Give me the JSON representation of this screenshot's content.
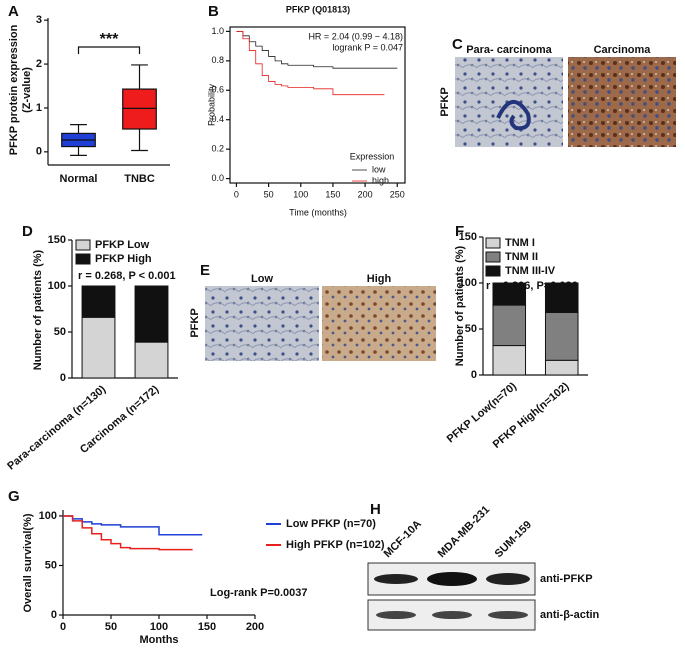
{
  "chart_data": [
    {
      "type": "box",
      "panel": "A",
      "y_label": [
        "PFKP protein expression",
        "(Z-value)"
      ],
      "categories": [
        "Normal",
        "TNBC"
      ],
      "stats": [
        {
          "min": -0.08,
          "q1": 0.12,
          "median": 0.27,
          "q3": 0.42,
          "max": 0.62
        },
        {
          "min": 0.03,
          "q1": 0.52,
          "median": 0.99,
          "q3": 1.43,
          "max": 1.98
        }
      ],
      "colors": [
        "#1f3fd6",
        "#ee1c1c"
      ],
      "ylim": [
        -0.3,
        3.05
      ],
      "yticks": [
        0,
        1,
        2,
        3
      ],
      "annotations": [
        "***"
      ]
    },
    {
      "type": "step",
      "panel": "B",
      "title": "PFKP (Q01813)",
      "x_label": "Time (months)",
      "y_label": "Probability",
      "annotations": [
        "HR = 2.04 (0.99 − 4.18)",
        "logrank P = 0.047"
      ],
      "legend_title": "Expression",
      "xlim": [
        -10,
        262
      ],
      "xticks": [
        0,
        50,
        100,
        150,
        200,
        250
      ],
      "ylim": [
        -0.03,
        1.03
      ],
      "yticks": [
        {
          "value": 0,
          "label": "0.0"
        },
        {
          "value": 0.2,
          "label": "0.2"
        },
        {
          "value": 0.4,
          "label": "0.4"
        },
        {
          "value": 0.6,
          "label": "0.6"
        },
        {
          "value": 0.8,
          "label": "0.8"
        },
        {
          "value": 1,
          "label": "1.0"
        }
      ],
      "series": [
        {
          "name": "low",
          "color": "#222222",
          "x": [
            0,
            10,
            20,
            30,
            40,
            50,
            60,
            70,
            80,
            100,
            120,
            150,
            250
          ],
          "values": [
            1,
            0.97,
            0.93,
            0.9,
            0.87,
            0.83,
            0.8,
            0.78,
            0.77,
            0.77,
            0.76,
            0.75,
            0.75
          ]
        },
        {
          "name": "high",
          "color": "#e8201c",
          "x": [
            0,
            10,
            20,
            30,
            40,
            50,
            60,
            70,
            80,
            100,
            120,
            150,
            230
          ],
          "values": [
            1,
            0.95,
            0.87,
            0.78,
            0.7,
            0.66,
            0.64,
            0.63,
            0.62,
            0.62,
            0.61,
            0.57,
            0.57
          ]
        }
      ]
    },
    {
      "type": "stacked_bar",
      "panel": "D",
      "y_label": "Number of patients (%)",
      "annotations": [
        "r = 0.268,  P < 0.001"
      ],
      "categories": [
        "Para-carcinoma (n=130)",
        "Carcinoma (n=172)"
      ],
      "ylim": [
        0,
        150
      ],
      "yticks": [
        0,
        50,
        100,
        150
      ],
      "series": [
        {
          "name": "PFKP Low",
          "color": "#d4d4d4",
          "values": [
            66,
            39
          ]
        },
        {
          "name": "PFKP High",
          "color": "#111111",
          "values": [
            34,
            61
          ]
        }
      ]
    },
    {
      "type": "stacked_bar",
      "panel": "F",
      "y_label": "Number of patients (%)",
      "annotations": [
        "r = 0.206, P=0.026"
      ],
      "categories": [
        "PFKP Low(n=70)",
        "PFKP High(n=102)"
      ],
      "ylim": [
        0,
        150
      ],
      "yticks": [
        0,
        50,
        100,
        150
      ],
      "series": [
        {
          "name": "TNM I",
          "color": "#d4d4d4",
          "values": [
            32,
            16
          ]
        },
        {
          "name": "TNM II",
          "color": "#808080",
          "values": [
            44,
            52
          ]
        },
        {
          "name": "TNM III-IV",
          "color": "#111111",
          "values": [
            24,
            32
          ]
        }
      ]
    },
    {
      "type": "step",
      "panel": "G",
      "x_label": "Months",
      "y_label": "Overall survival(%)",
      "annotations": [
        "Log-rank P=0.0037"
      ],
      "xlim": [
        0,
        200
      ],
      "xticks": [
        0,
        50,
        100,
        150,
        200
      ],
      "ylim": [
        0,
        106
      ],
      "yticks": [
        0,
        50,
        100
      ],
      "series": [
        {
          "name": "Low PFKP (n=70)",
          "color": "#1f3fd6",
          "x": [
            0,
            10,
            20,
            30,
            40,
            50,
            60,
            90,
            100,
            145
          ],
          "values": [
            100,
            97,
            94,
            92,
            91,
            91,
            89,
            89,
            81,
            81
          ]
        },
        {
          "name": "High PFKP (n=102)",
          "color": "#e8201c",
          "x": [
            0,
            10,
            20,
            30,
            40,
            50,
            60,
            70,
            80,
            100,
            135
          ],
          "values": [
            100,
            95,
            88,
            82,
            76,
            72,
            68,
            67,
            67,
            66,
            66
          ]
        }
      ]
    }
  ],
  "image_panels": [
    {
      "panel": "C",
      "side_label": "PFKP",
      "labels": [
        "Para- carcinoma",
        "Carcinoma"
      ]
    },
    {
      "panel": "E",
      "side_label": "PFKP",
      "labels": [
        "Low",
        "High"
      ]
    },
    {
      "panel": "H",
      "lanes": [
        "MCF-10A",
        "MDA-MB-231",
        "SUM-159"
      ],
      "rows": [
        "anti-PFKP",
        "anti-β-actin"
      ]
    }
  ]
}
